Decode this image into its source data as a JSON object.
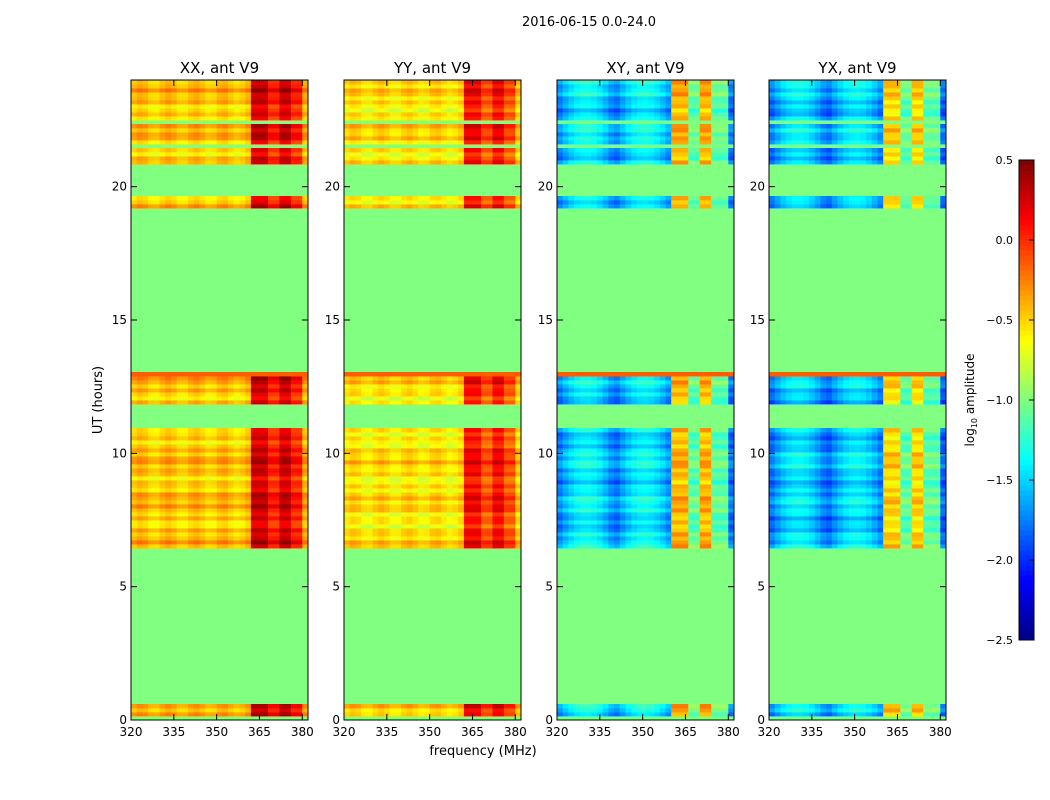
{
  "chart_data": {
    "type": "heatmap",
    "suptitle": "2016-06-15 0.0-24.0",
    "xlabel": "frequency (MHz)",
    "ylabel": "UT (hours)",
    "xlim": [
      320,
      382
    ],
    "ylim": [
      0,
      24
    ],
    "xticks": [
      320,
      335,
      350,
      365,
      380
    ],
    "yticks": [
      0,
      5,
      10,
      15,
      20
    ],
    "colorbar": {
      "label": "log",
      "label_sub": "10",
      "label_suffix": " amplitude",
      "range": [
        -2.5,
        0.5
      ],
      "ticks": [
        "0.5",
        "0.0",
        "−0.5",
        "−1.0",
        "−1.5",
        "−2.0",
        "−2.5"
      ],
      "tick_values": [
        0.5,
        0.0,
        -0.5,
        -1.0,
        -1.5,
        -2.0,
        -2.5
      ]
    },
    "flagged_value": -1.0,
    "observed_time_blocks": [
      [
        0.15,
        0.55
      ],
      [
        6.45,
        8.4
      ],
      [
        8.4,
        10.9
      ],
      [
        11.8,
        12.85
      ],
      [
        12.85,
        13.0
      ],
      [
        19.15,
        19.7
      ],
      [
        20.8,
        21.5
      ],
      [
        21.6,
        22.4
      ],
      [
        22.5,
        24.0
      ]
    ],
    "panels": [
      {
        "title": "XX, ant V9",
        "base_level": -0.45,
        "band_level": 0.15,
        "band_freq_mhz": [
          363,
          380
        ]
      },
      {
        "title": "YY, ant V9",
        "base_level": -0.55,
        "band_level": 0.0,
        "band_freq_mhz": [
          363,
          380
        ]
      },
      {
        "title": "XY, ant V9",
        "base_level": -1.8,
        "band_level": -0.4,
        "band_freq_mhz": [
          361,
          380
        ]
      },
      {
        "title": "YX, ant V9",
        "base_level": -1.85,
        "band_level": -0.5,
        "band_freq_mhz": [
          361,
          380
        ]
      }
    ]
  }
}
